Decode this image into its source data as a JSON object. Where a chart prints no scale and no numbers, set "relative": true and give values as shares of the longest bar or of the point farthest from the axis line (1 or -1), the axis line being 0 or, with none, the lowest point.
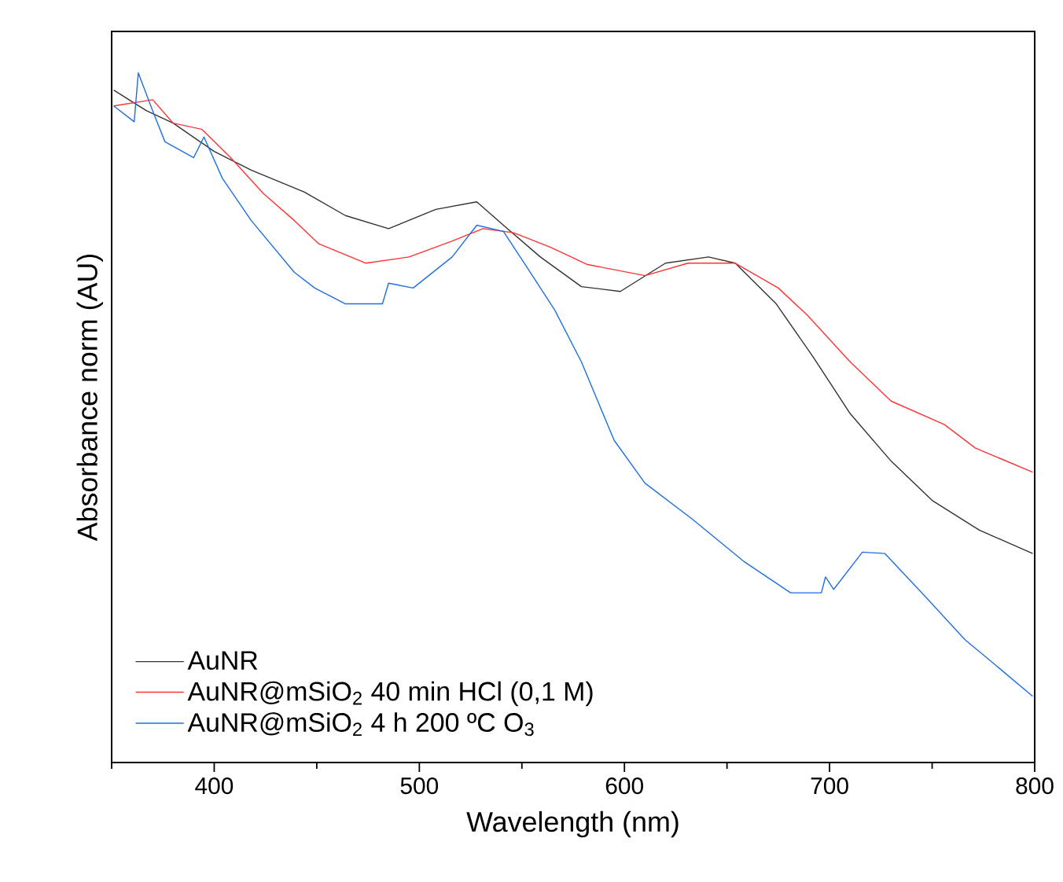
{
  "chart_data": {
    "type": "line",
    "relative": true,
    "xlabel": "Wavelength (nm)",
    "ylabel": "Absorbance norm (AU)",
    "xlim": [
      350,
      800
    ],
    "xticks": [
      {
        "value": 350,
        "label": null
      },
      400,
      {
        "value": 450,
        "label": null
      },
      500,
      {
        "value": 550,
        "label": null
      },
      600,
      {
        "value": 650,
        "label": null
      },
      700,
      {
        "value": 750,
        "label": null
      },
      800
    ],
    "legend": "bottom left",
    "grid": false,
    "line_style": "solid",
    "marker": "none",
    "series": [
      {
        "name": "AuNR",
        "color": "#333333",
        "x": [
          351,
          367,
          380,
          400,
          418,
          444,
          464,
          485,
          508,
          528,
          541,
          559,
          579,
          598,
          620,
          641,
          654,
          674,
          692,
          710,
          730,
          750,
          773,
          799
        ],
        "values": [
          0.975,
          0.945,
          0.927,
          0.886,
          0.859,
          0.827,
          0.793,
          0.774,
          0.802,
          0.813,
          0.779,
          0.733,
          0.69,
          0.683,
          0.724,
          0.733,
          0.724,
          0.665,
          0.588,
          0.506,
          0.437,
          0.38,
          0.337,
          0.303
        ]
      },
      {
        "name": "AuNR@mSiO$_{2}$ 40 min HCl (0,1 M)",
        "color": "#ff3333",
        "x": [
          351,
          370,
          380,
          394,
          408,
          424,
          439,
          451,
          474,
          495,
          516,
          531,
          546,
          564,
          582,
          610,
          631,
          654,
          675,
          689,
          710,
          730,
          756,
          771,
          799
        ],
        "values": [
          0.952,
          0.961,
          0.927,
          0.918,
          0.877,
          0.825,
          0.786,
          0.752,
          0.724,
          0.733,
          0.756,
          0.774,
          0.768,
          0.747,
          0.722,
          0.706,
          0.724,
          0.724,
          0.688,
          0.649,
          0.581,
          0.524,
          0.49,
          0.456,
          0.421
        ]
      },
      {
        "name": "AuNR@mSiO$_{2}$ 4 h 200 ºC O$_{3}$",
        "color": "#1f6fdf",
        "x": [
          351,
          361,
          363,
          370,
          376,
          390,
          395,
          404,
          418,
          439,
          449,
          464,
          482,
          485,
          497,
          516,
          528,
          541,
          554,
          566,
          579,
          595,
          610,
          633,
          658,
          681,
          696,
          698,
          702,
          716,
          727,
          745,
          766,
          781,
          799
        ],
        "values": [
          0.952,
          0.929,
          1.0,
          0.945,
          0.9,
          0.877,
          0.907,
          0.847,
          0.786,
          0.711,
          0.688,
          0.665,
          0.665,
          0.695,
          0.688,
          0.733,
          0.779,
          0.77,
          0.711,
          0.656,
          0.581,
          0.467,
          0.405,
          0.353,
          0.292,
          0.246,
          0.246,
          0.269,
          0.251,
          0.305,
          0.303,
          0.246,
          0.178,
          0.141,
          0.096
        ]
      }
    ]
  }
}
